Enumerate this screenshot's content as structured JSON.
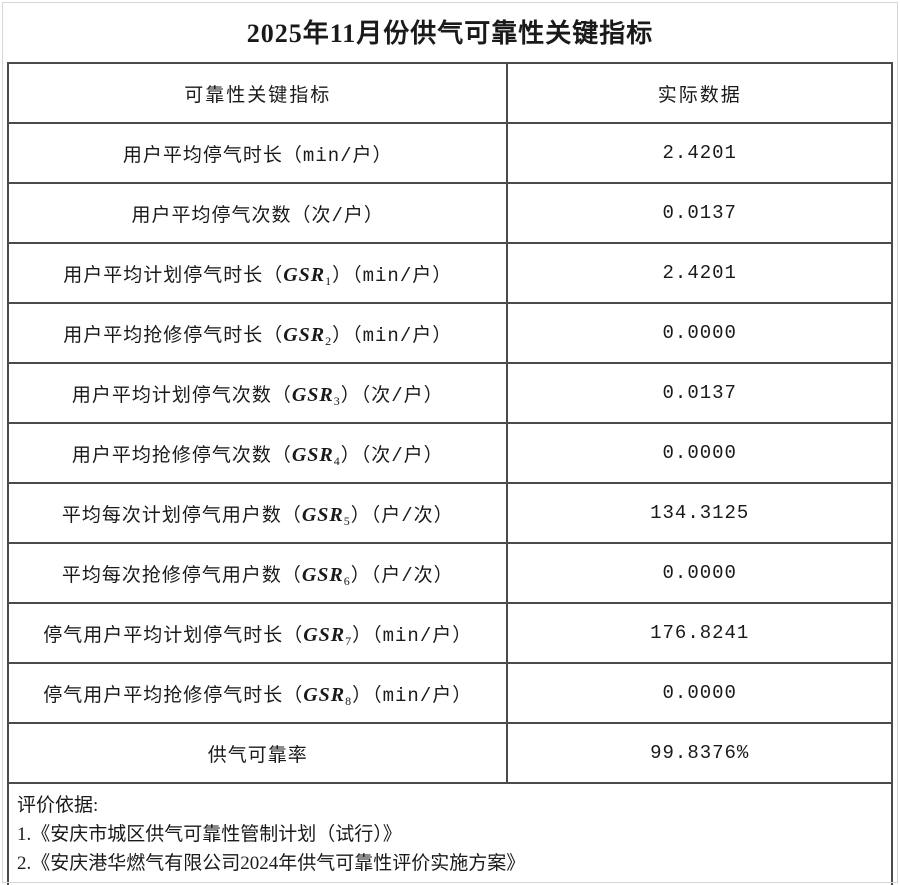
{
  "title": "2025年11月份供气可靠性关键指标",
  "table": {
    "headers": [
      "可靠性关键指标",
      "实际数据"
    ],
    "rows": [
      {
        "prefix": "用户平均停气时长（min/户）",
        "gsr": "",
        "sub": "",
        "suffix": "",
        "value": "2.4201"
      },
      {
        "prefix": "用户平均停气次数（次/户）",
        "gsr": "",
        "sub": "",
        "suffix": "",
        "value": "0.0137"
      },
      {
        "prefix": "用户平均计划停气时长（",
        "gsr": "GSR",
        "sub": "1",
        "suffix": "）（min/户）",
        "value": "2.4201"
      },
      {
        "prefix": "用户平均抢修停气时长（",
        "gsr": "GSR",
        "sub": "2",
        "suffix": "）（min/户）",
        "value": "0.0000"
      },
      {
        "prefix": "用户平均计划停气次数（",
        "gsr": "GSR",
        "sub": "3",
        "suffix": "）（次/户）",
        "value": "0.0137"
      },
      {
        "prefix": "用户平均抢修停气次数（",
        "gsr": "GSR",
        "sub": "4",
        "suffix": "）（次/户）",
        "value": "0.0000"
      },
      {
        "prefix": "平均每次计划停气用户数（",
        "gsr": "GSR",
        "sub": "5",
        "suffix": "）（户/次）",
        "value": "134.3125"
      },
      {
        "prefix": "平均每次抢修停气用户数（",
        "gsr": "GSR",
        "sub": "6",
        "suffix": "）（户/次）",
        "value": "0.0000"
      },
      {
        "prefix": "停气用户平均计划停气时长（",
        "gsr": "GSR",
        "sub": "7",
        "suffix": "）（min/户）",
        "value": "176.8241"
      },
      {
        "prefix": "停气用户平均抢修停气时长（",
        "gsr": "GSR",
        "sub": "8",
        "suffix": "）（min/户）",
        "value": "0.0000"
      },
      {
        "prefix": "供气可靠率",
        "gsr": "",
        "sub": "",
        "suffix": "",
        "value": "99.8376%"
      }
    ]
  },
  "footer": {
    "heading": "评价依据:",
    "items": [
      "1.《安庆市城区供气可靠性管制计划（试行）》",
      "2.《安庆港华燃气有限公司2024年供气可靠性评价实施方案》"
    ]
  },
  "colors": {
    "border_dark": "#4b4b4b",
    "border_light": "#d6d6d6",
    "text": "#1a1a1a"
  }
}
